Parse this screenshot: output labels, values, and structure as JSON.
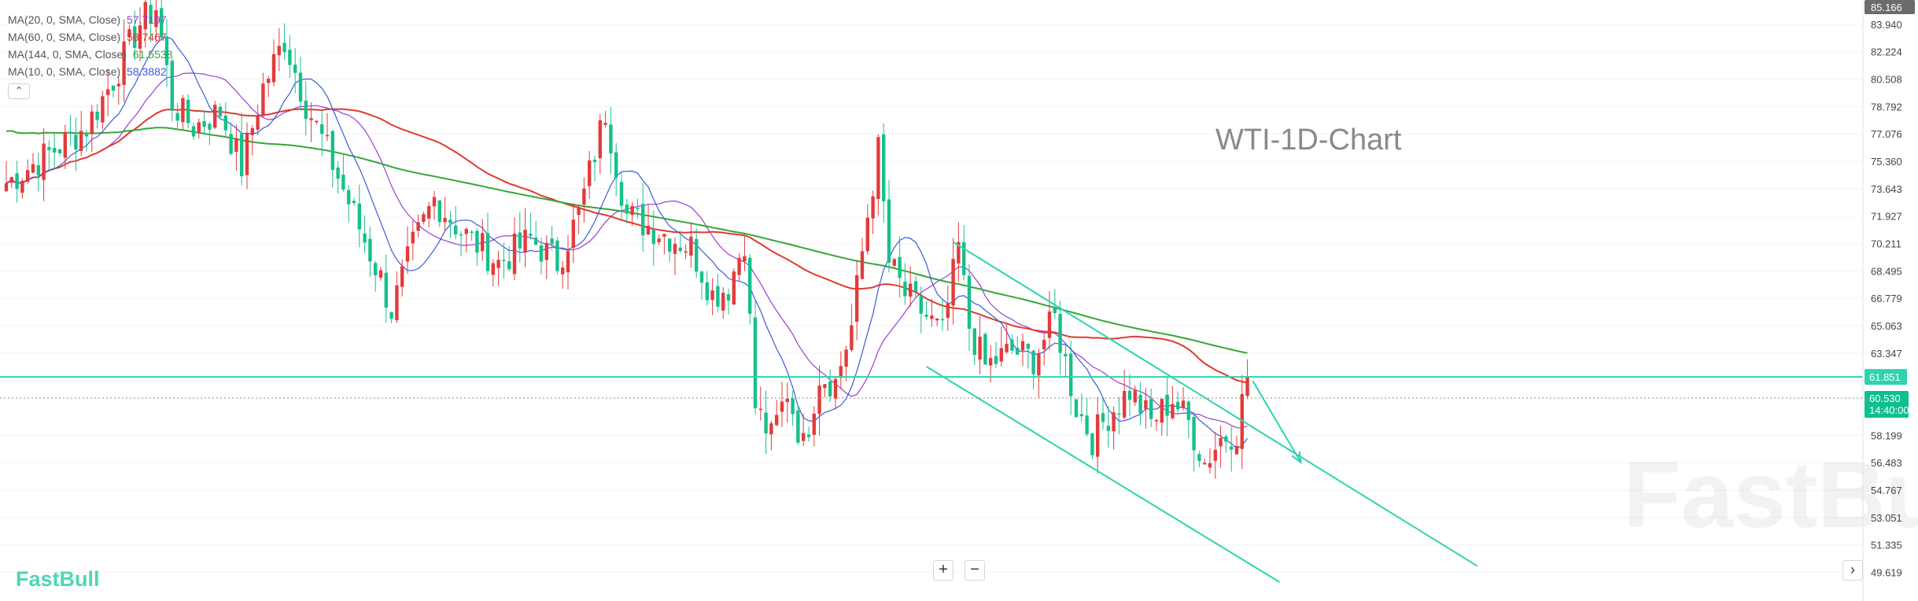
{
  "chart_data": {
    "type": "candlestick",
    "title": "WTI-1D-Chart",
    "watermark": "FastBull",
    "brand": "FastBull",
    "y_axis_ticks": [
      83.94,
      82.224,
      80.508,
      78.792,
      77.076,
      75.36,
      73.643,
      71.927,
      70.211,
      68.495,
      66.779,
      65.063,
      63.347,
      58.199,
      56.483,
      54.767,
      53.051,
      51.335,
      49.619
    ],
    "y_axis_tick_labels": [
      "83.940",
      "82.224",
      "80.508",
      "78.792",
      "77.076",
      "75.360",
      "73.643",
      "71.927",
      "70.211",
      "68.495",
      "66.779",
      "65.063",
      "63.347",
      "58.199",
      "56.483",
      "54.767",
      "53.051",
      "51.335",
      "49.619"
    ],
    "ylim": [
      49.0,
      85.166
    ],
    "top_price_label": "85.166",
    "horizontal_level": {
      "value": 61.851,
      "label": "61.851",
      "color": "#2ed3ae"
    },
    "last_price": {
      "value": 60.53,
      "label": "60.530",
      "countdown": "14:40:00",
      "color": "#0fbf8f"
    },
    "moving_averages": [
      {
        "name": "MA(20, 0, SMA, Close)",
        "value": "57.7197",
        "color": "#9b3fd1"
      },
      {
        "name": "MA(60, 0, SMA, Close)",
        "value": "58.7467",
        "color": "#e03a2f"
      },
      {
        "name": "MA(144, 0, SMA, Close)",
        "value": "61.5538",
        "color": "#36a63a"
      },
      {
        "name": "MA(10, 0, SMA, Close)",
        "value": "58.3882",
        "color": "#3b5bdb"
      }
    ],
    "colors": {
      "up": "#e33b3b",
      "down": "#16c08c",
      "channel": "#2ed3ae"
    },
    "candles_visible": 280,
    "price_path_anchors": [
      [
        0,
        74.0
      ],
      [
        15,
        77.5
      ],
      [
        20,
        80.5
      ],
      [
        25,
        84.0
      ],
      [
        28,
        85.0
      ],
      [
        31,
        79.0
      ],
      [
        35,
        77.5
      ],
      [
        40,
        78.5
      ],
      [
        44,
        75.0
      ],
      [
        48,
        80.0
      ],
      [
        52,
        83.0
      ],
      [
        56,
        79.0
      ],
      [
        60,
        76.0
      ],
      [
        65,
        72.0
      ],
      [
        70,
        68.0
      ],
      [
        72,
        66.0
      ],
      [
        76,
        70.0
      ],
      [
        80,
        73.0
      ],
      [
        85,
        71.0
      ],
      [
        92,
        69.0
      ],
      [
        98,
        70.5
      ],
      [
        103,
        69.0
      ],
      [
        107,
        72.0
      ],
      [
        112,
        78.5
      ],
      [
        116,
        72.0
      ],
      [
        122,
        71.0
      ],
      [
        128,
        70.0
      ],
      [
        132,
        67.0
      ],
      [
        135,
        67.5
      ],
      [
        138,
        70.5
      ],
      [
        140,
        60.0
      ],
      [
        143,
        58.0
      ],
      [
        146,
        61.0
      ],
      [
        149,
        57.5
      ],
      [
        152,
        62.0
      ],
      [
        155,
        61.5
      ],
      [
        158,
        65.0
      ],
      [
        161,
        72.0
      ],
      [
        163,
        76.0
      ],
      [
        165,
        69.0
      ],
      [
        168,
        67.0
      ],
      [
        171,
        66.0
      ],
      [
        175,
        64.5
      ],
      [
        178,
        70.0
      ],
      [
        180,
        65.0
      ],
      [
        183,
        62.5
      ],
      [
        188,
        63.5
      ],
      [
        192,
        63.0
      ],
      [
        196,
        65.5
      ],
      [
        200,
        60.0
      ],
      [
        203,
        58.0
      ],
      [
        206,
        59.5
      ],
      [
        210,
        61.0
      ],
      [
        214,
        59.0
      ],
      [
        218,
        60.5
      ],
      [
        221,
        59.0
      ],
      [
        224,
        56.5
      ],
      [
        227,
        58.0
      ],
      [
        230,
        58.5
      ],
      [
        232,
        62.0
      ]
    ],
    "channel_lines": [
      {
        "name": "upper",
        "from": [
          177,
          70.3
        ],
        "to": [
          275,
          50.0
        ]
      },
      {
        "name": "lower",
        "from": [
          172,
          62.5
        ],
        "to": [
          238,
          49.0
        ]
      }
    ],
    "forecast_arrow": {
      "from": [
        233,
        61.6
      ],
      "to": [
        242,
        56.5
      ]
    }
  }
}
